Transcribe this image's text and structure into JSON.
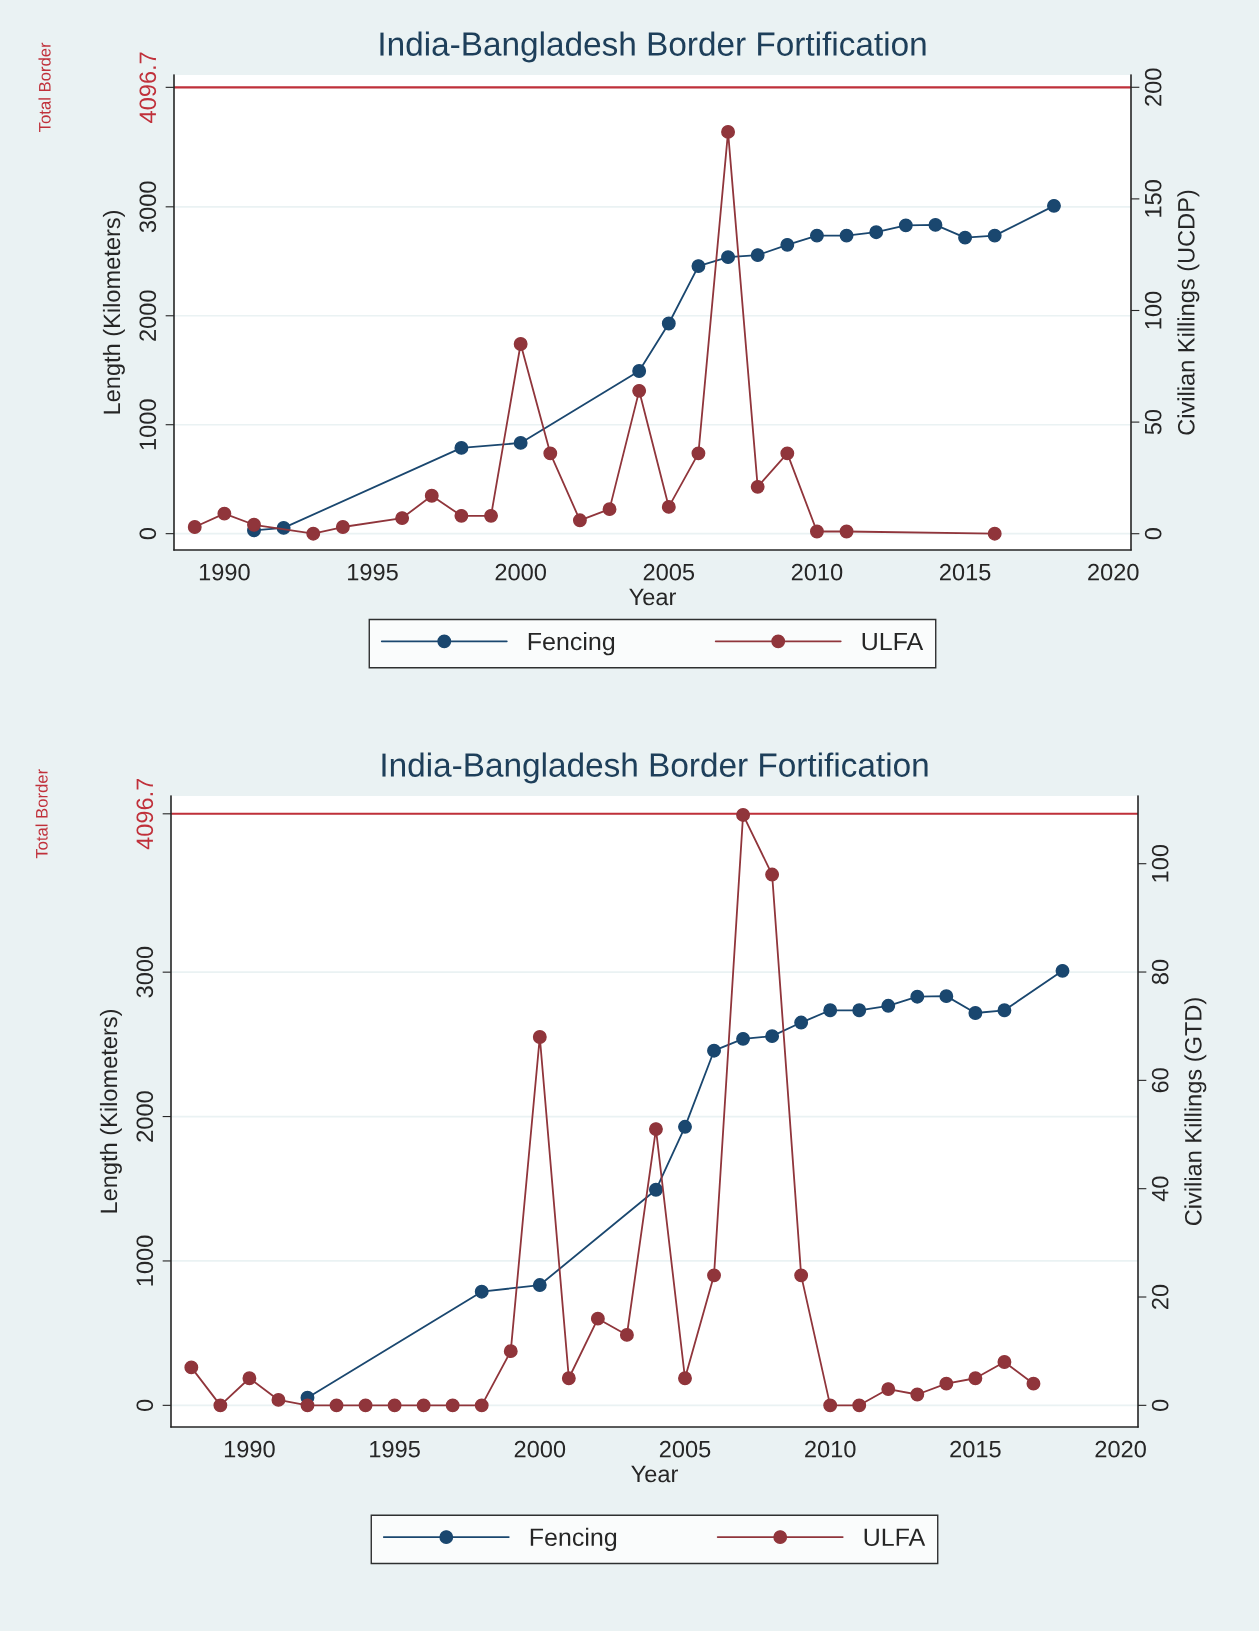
{
  "chart_data": [
    {
      "type": "line",
      "title": "India-Bangladesh Border Fortification",
      "xlabel": "Year",
      "ylabel": "Length (Kilometers)",
      "y2label": "Civilian Killings (UCDP)",
      "xlim": [
        1988.3,
        2020.6
      ],
      "xticks": [
        1990,
        1995,
        2000,
        2005,
        2010,
        2015,
        2020
      ],
      "ylim": [
        -150,
        4210
      ],
      "yticks": [
        0,
        1000,
        2000,
        3000,
        4096.7
      ],
      "y2lim": [
        -7.3,
        205.5
      ],
      "y2ticks": [
        0,
        50,
        100,
        150,
        200
      ],
      "ref_lines": [
        {
          "axis": "y",
          "value": 4096.7,
          "label": "Total Border",
          "color": "#c0303a"
        }
      ],
      "grid": "y",
      "legend": "bottom",
      "marker": "circle",
      "series": [
        {
          "name": "Fencing",
          "color": "#1a476f",
          "x": [
            1991,
            1992,
            1998,
            2000,
            2004,
            2005,
            2006,
            2007,
            2008,
            2009,
            2010,
            2011,
            2012,
            2013,
            2014,
            2015,
            2016,
            2018
          ],
          "values": [
            30,
            53,
            787,
            833,
            1493,
            1929,
            2456,
            2538,
            2557,
            2651,
            2736,
            2736,
            2767,
            2830,
            2834,
            2717,
            2736,
            3009
          ]
        },
        {
          "name": "ULFA",
          "color": "#90353b",
          "axis": "y2",
          "x": [
            1989,
            1990,
            1991,
            1993,
            1994,
            1996,
            1997,
            1998,
            1999,
            2000,
            2001,
            2002,
            2003,
            2004,
            2005,
            2006,
            2007,
            2008,
            2009,
            2010,
            2011,
            2016
          ],
          "values": [
            3,
            9,
            4,
            0,
            3,
            7,
            17,
            8,
            8,
            85,
            36,
            6,
            11,
            64,
            12,
            36,
            180,
            21,
            36,
            1,
            1,
            0
          ]
        }
      ]
    },
    {
      "type": "line",
      "title": "India-Bangladesh Border Fortification",
      "xlabel": "Year",
      "ylabel": "Length (Kilometers)",
      "y2label": "Civilian Killings (GTD)",
      "xlim": [
        1987.3,
        2020.6
      ],
      "xticks": [
        1990,
        1995,
        2000,
        2005,
        2010,
        2015,
        2020
      ],
      "ylim": [
        -150,
        4220
      ],
      "yticks": [
        0,
        1000,
        2000,
        3000,
        4096.7
      ],
      "y2lim": [
        -4,
        112.5
      ],
      "y2ticks": [
        0,
        20,
        40,
        60,
        80,
        100
      ],
      "ref_lines": [
        {
          "axis": "y",
          "value": 4096.7,
          "label": "Total Border",
          "color": "#c0303a"
        }
      ],
      "grid": "y",
      "legend": "bottom",
      "marker": "circle",
      "series": [
        {
          "name": "Fencing",
          "color": "#1a476f",
          "x": [
            1992,
            1998,
            2000,
            2004,
            2005,
            2006,
            2007,
            2008,
            2009,
            2010,
            2011,
            2012,
            2013,
            2014,
            2015,
            2016,
            2018
          ],
          "values": [
            53,
            787,
            833,
            1493,
            1929,
            2456,
            2538,
            2557,
            2651,
            2736,
            2736,
            2767,
            2830,
            2834,
            2717,
            2736,
            3009
          ]
        },
        {
          "name": "ULFA",
          "color": "#90353b",
          "axis": "y2",
          "x": [
            1988,
            1989,
            1990,
            1991,
            1992,
            1993,
            1994,
            1995,
            1996,
            1997,
            1998,
            1999,
            2000,
            2001,
            2002,
            2003,
            2004,
            2005,
            2006,
            2007,
            2008,
            2009,
            2010,
            2011,
            2012,
            2013,
            2014,
            2015,
            2016,
            2017
          ],
          "values": [
            7,
            0,
            5,
            1,
            0,
            0,
            0,
            0,
            0,
            0,
            0,
            10,
            68,
            5,
            16,
            13,
            51,
            5,
            24,
            109,
            98,
            24,
            0,
            0,
            3,
            2,
            4,
            5,
            8,
            4
          ]
        }
      ]
    }
  ]
}
